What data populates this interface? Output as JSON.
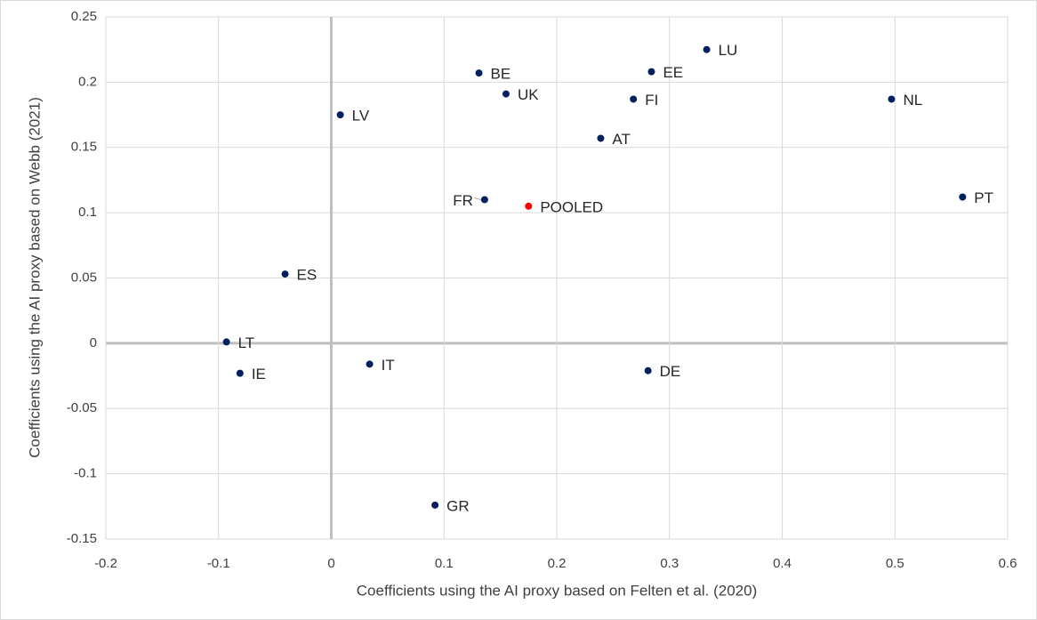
{
  "chart_data": {
    "type": "scatter",
    "x_label": "Coefficients using the AI proxy based on Felten et al. (2020)",
    "y_label": "Coefficients using the AI proxy based on Webb (2021)",
    "xlim": [
      -0.2,
      0.6
    ],
    "xticks": [
      -0.2,
      -0.1,
      0,
      0.1,
      0.2,
      0.3,
      0.4,
      0.5,
      0.6
    ],
    "ylim": [
      -0.15,
      0.25
    ],
    "yticks": [
      -0.15,
      -0.1,
      -0.05,
      0,
      0.05,
      0.1,
      0.15,
      0.2,
      0.25
    ],
    "grid": true,
    "points": [
      {
        "label": "LT",
        "x": -0.093,
        "y": 0.001,
        "color": "#002060"
      },
      {
        "label": "IE",
        "x": -0.081,
        "y": -0.023,
        "color": "#002060"
      },
      {
        "label": "ES",
        "x": -0.041,
        "y": 0.053,
        "color": "#002060"
      },
      {
        "label": "LV",
        "x": 0.008,
        "y": 0.175,
        "color": "#002060"
      },
      {
        "label": "IT",
        "x": 0.034,
        "y": -0.016,
        "color": "#002060"
      },
      {
        "label": "GR",
        "x": 0.092,
        "y": -0.124,
        "color": "#002060"
      },
      {
        "label": "BE",
        "x": 0.131,
        "y": 0.207,
        "color": "#002060"
      },
      {
        "label": "FR",
        "x": 0.136,
        "y": 0.11,
        "color": "#002060"
      },
      {
        "label": "UK",
        "x": 0.155,
        "y": 0.191,
        "color": "#002060"
      },
      {
        "label": "POOLED",
        "x": 0.175,
        "y": 0.105,
        "color": "#ff0000"
      },
      {
        "label": "AT",
        "x": 0.239,
        "y": 0.157,
        "color": "#002060"
      },
      {
        "label": "FI",
        "x": 0.268,
        "y": 0.187,
        "color": "#002060"
      },
      {
        "label": "DE",
        "x": 0.281,
        "y": -0.021,
        "color": "#002060"
      },
      {
        "label": "EE",
        "x": 0.284,
        "y": 0.208,
        "color": "#002060"
      },
      {
        "label": "LU",
        "x": 0.333,
        "y": 0.225,
        "color": "#002060"
      },
      {
        "label": "NL",
        "x": 0.497,
        "y": 0.187,
        "color": "#002060"
      },
      {
        "label": "PT",
        "x": 0.56,
        "y": 0.112,
        "color": "#002060"
      }
    ]
  }
}
